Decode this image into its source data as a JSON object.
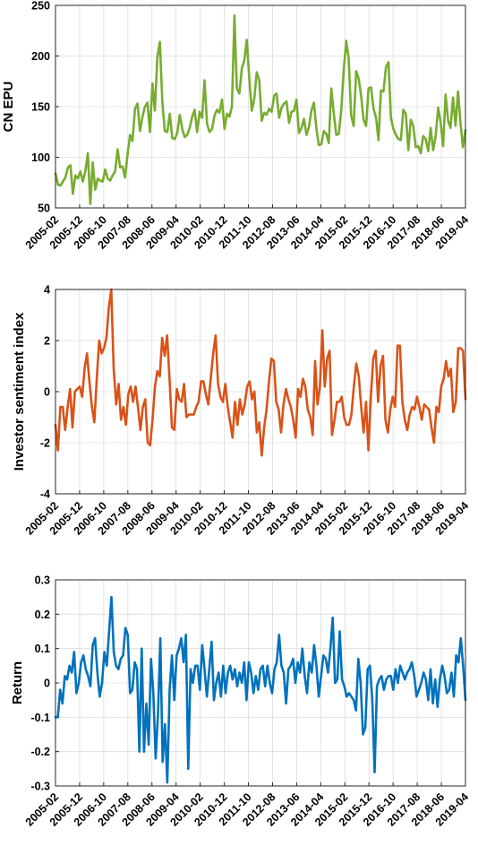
{
  "chart_data": [
    {
      "type": "line",
      "ylabel": "CN EPU",
      "ylim": [
        50,
        250
      ],
      "yticks": [
        50,
        100,
        150,
        200,
        250
      ],
      "grid": true,
      "color": "#77AC30",
      "x_tick_labels": [
        "2005-02",
        "2005-12",
        "2006-10",
        "2007-08",
        "2008-06",
        "2009-04",
        "2010-02",
        "2010-12",
        "2011-10",
        "2012-08",
        "2013-06",
        "2014-04",
        "2015-02",
        "2015-12",
        "2016-10",
        "2017-08",
        "2018-06",
        "2019-04"
      ],
      "x_start": "2005-02",
      "x_end": "2019-04",
      "values": [
        84,
        73,
        72,
        76,
        80,
        90,
        92,
        64,
        82,
        79,
        86,
        76,
        86,
        104,
        54,
        95,
        68,
        79,
        77,
        76,
        88,
        79,
        77,
        82,
        86,
        108,
        90,
        91,
        80,
        103,
        122,
        116,
        148,
        153,
        126,
        140,
        150,
        154,
        125,
        173,
        146,
        199,
        214,
        154,
        126,
        125,
        143,
        119,
        118,
        124,
        142,
        128,
        120,
        122,
        129,
        140,
        147,
        125,
        145,
        139,
        176,
        133,
        125,
        128,
        141,
        147,
        144,
        157,
        128,
        143,
        140,
        150,
        240,
        168,
        163,
        188,
        196,
        216,
        178,
        146,
        158,
        184,
        176,
        136,
        144,
        142,
        148,
        145,
        161,
        163,
        139,
        149,
        153,
        155,
        134,
        145,
        146,
        157,
        124,
        129,
        138,
        122,
        130,
        146,
        154,
        128,
        112,
        113,
        126,
        123,
        114,
        168,
        143,
        122,
        123,
        146,
        186,
        215,
        198,
        141,
        131,
        185,
        178,
        161,
        137,
        131,
        168,
        169,
        148,
        139,
        117,
        166,
        165,
        189,
        194,
        139,
        128,
        122,
        118,
        117,
        147,
        143,
        107,
        137,
        131,
        110,
        111,
        104,
        121,
        118,
        106,
        129,
        107,
        121,
        149,
        135,
        111,
        162,
        136,
        129,
        159,
        131,
        165,
        134,
        110,
        127
      ],
      "title": "",
      "xlabel": ""
    },
    {
      "type": "line",
      "ylabel": "Investor sentiment index",
      "ylim": [
        -4,
        4
      ],
      "yticks": [
        -4,
        -2,
        0,
        2,
        4
      ],
      "grid": true,
      "color": "#D95319",
      "x_tick_labels": [
        "2005-02",
        "2005-12",
        "2006-10",
        "2007-08",
        "2008-06",
        "2009-04",
        "2010-02",
        "2010-12",
        "2011-10",
        "2012-08",
        "2013-06",
        "2014-04",
        "2015-02",
        "2015-12",
        "2016-10",
        "2017-08",
        "2018-06",
        "2019-04"
      ],
      "x_start": "2005-02",
      "x_end": "2019-04",
      "values": [
        -1.3,
        -2.3,
        -0.6,
        -0.6,
        -1.5,
        -0.6,
        0.1,
        -1.4,
        0.0,
        0.1,
        0.2,
        -0.2,
        0.9,
        1.5,
        0.4,
        -0.6,
        -1.2,
        0.5,
        2.0,
        1.5,
        1.7,
        2.1,
        3.3,
        4.0,
        0.9,
        -0.5,
        0.3,
        -1.1,
        -0.6,
        -1.3,
        -0.1,
        0.2,
        -0.4,
        0.2,
        -0.6,
        -1.5,
        -0.6,
        -0.3,
        -2.0,
        -2.1,
        -1.1,
        0.2,
        0.8,
        0.6,
        2.1,
        1.4,
        2.2,
        0.5,
        -1.4,
        -1.5,
        0.1,
        -0.3,
        -0.4,
        0.3,
        -1.0,
        -0.9,
        -0.9,
        -0.9,
        -0.6,
        -0.4,
        0.4,
        0.4,
        -0.1,
        -0.5,
        0.5,
        1.5,
        2.2,
        0.3,
        -0.2,
        -0.4,
        0.3,
        -0.6,
        -1.2,
        -1.8,
        -0.4,
        -1.3,
        -0.3,
        -0.9,
        -0.5,
        0.2,
        0.4,
        -0.3,
        0.0,
        -1.6,
        -1.2,
        -2.5,
        -1.4,
        -0.7,
        0.4,
        1.3,
        1.2,
        -0.4,
        -0.7,
        -1.6,
        -0.5,
        0.1,
        -0.3,
        -0.6,
        -1.1,
        -1.8,
        0.1,
        -0.2,
        0.5,
        0.2,
        -0.7,
        -1.0,
        -1.7,
        1.2,
        -0.5,
        0.2,
        2.4,
        0.2,
        1.3,
        1.6,
        -1.7,
        -1.1,
        -0.4,
        -0.4,
        -0.2,
        -1.0,
        -1.3,
        -1.3,
        -0.9,
        0.2,
        1.1,
        0.6,
        -0.6,
        -1.6,
        -0.4,
        -2.3,
        -0.2,
        1.3,
        1.6,
        -0.4,
        1.0,
        1.4,
        -1.1,
        -1.6,
        -0.7,
        -0.2,
        -0.6,
        1.8,
        1.8,
        -0.4,
        -1.1,
        -1.5,
        -0.9,
        -0.6,
        -0.7,
        -0.2,
        -0.6,
        -1.1,
        -0.5,
        -0.6,
        -0.7,
        -1.4,
        -2.0,
        -0.6,
        -0.8,
        0.2,
        0.5,
        1.2,
        0.6,
        0.9,
        -0.8,
        -0.4,
        1.7,
        1.7,
        1.6,
        -0.3
      ],
      "title": "",
      "xlabel": ""
    },
    {
      "type": "line",
      "ylabel": "Return",
      "ylim": [
        -0.3,
        0.3
      ],
      "yticks": [
        -0.3,
        -0.2,
        -0.1,
        0,
        0.1,
        0.2,
        0.3
      ],
      "grid": true,
      "color": "#0072BD",
      "x_tick_labels": [
        "2005-02",
        "2005-12",
        "2006-10",
        "2007-08",
        "2008-06",
        "2009-04",
        "2010-02",
        "2010-12",
        "2011-10",
        "2012-08",
        "2013-06",
        "2014-04",
        "2015-02",
        "2015-12",
        "2016-10",
        "2017-08",
        "2018-06",
        "2019-04"
      ],
      "x_start": "2005-02",
      "x_end": "2019-04",
      "values": [
        -0.1,
        -0.1,
        -0.02,
        -0.06,
        0.02,
        0.01,
        0.05,
        0.03,
        0.09,
        -0.03,
        0.0,
        0.06,
        0.08,
        0.04,
        0.02,
        -0.01,
        0.11,
        0.13,
        0.03,
        -0.04,
        0.0,
        0.09,
        0.05,
        0.15,
        0.25,
        0.09,
        0.05,
        0.04,
        0.07,
        0.08,
        0.16,
        0.14,
        -0.03,
        -0.02,
        0.06,
        0.04,
        -0.2,
        0.1,
        -0.2,
        -0.06,
        -0.18,
        0.07,
        -0.03,
        -0.22,
        -0.09,
        0.13,
        -0.23,
        -0.12,
        -0.29,
        -0.02,
        0.08,
        -0.05,
        0.08,
        0.1,
        0.13,
        0.06,
        0.14,
        -0.25,
        0.04,
        0.0,
        0.05,
        0.05,
        -0.02,
        0.11,
        0.04,
        -0.04,
        0.04,
        0.12,
        -0.05,
        0.0,
        0.03,
        -0.04,
        0.05,
        -0.03,
        0.03,
        0.05,
        0.01,
        0.04,
        -0.01,
        0.03,
        0.0,
        0.06,
        -0.05,
        0.06,
        0.03,
        -0.03,
        0.02,
        -0.02,
        0.04,
        0.05,
        -0.01,
        0.05,
        0.0,
        -0.03,
        0.04,
        0.06,
        0.14,
        0.05,
        0.03,
        -0.06,
        0.04,
        0.05,
        0.07,
        0.0,
        0.06,
        0.03,
        0.1,
        0.02,
        -0.03,
        0.06,
        0.03,
        0.11,
        0.05,
        -0.04,
        0.02,
        0.08,
        0.07,
        0.03,
        0.1,
        0.19,
        0.0,
        0.01,
        0.15,
        0.01,
        -0.01,
        -0.04,
        -0.03,
        -0.04,
        -0.05,
        -0.08,
        0.07,
        0.0,
        -0.15,
        -0.13,
        0.04,
        0.05,
        -0.05,
        -0.26,
        -0.01,
        0.01,
        0.02,
        -0.02,
        0.01,
        0.02,
        0.02,
        -0.02,
        0.04,
        0.0,
        0.05,
        0.03,
        0.01,
        0.03,
        0.04,
        0.06,
        0.02,
        -0.04,
        -0.02,
        0.0,
        0.03,
        0.01,
        -0.05,
        0.04,
        -0.06,
        0.01,
        -0.07,
        0.01,
        0.05,
        0.02,
        -0.03,
        -0.02,
        0.03,
        -0.04,
        0.08,
        0.06,
        0.13,
        0.05,
        -0.05
      ],
      "title": "",
      "xlabel": ""
    }
  ]
}
